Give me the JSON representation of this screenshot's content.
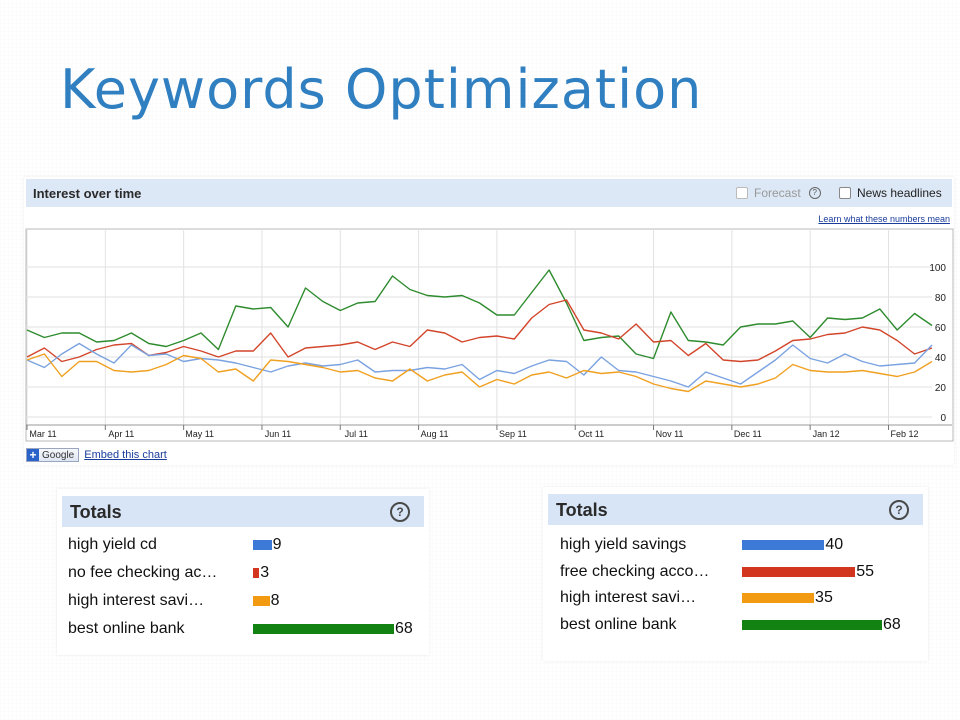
{
  "slide": {
    "title": "Keywords Optimization"
  },
  "trend": {
    "header": "Interest over time",
    "forecast_label": "Forecast",
    "help_glyph": "?",
    "news_label": "News headlines",
    "learn_link": "Learn what these numbers mean",
    "google_label": "Google",
    "plus_glyph": "+",
    "embed_label": "Embed this chart"
  },
  "chart_data": [
    {
      "type": "line",
      "title": "Interest over time",
      "xlabel": "",
      "ylabel": "",
      "ylim": [
        0,
        100
      ],
      "yticks": [
        0,
        20,
        40,
        60,
        80,
        100
      ],
      "grid": true,
      "x_tick_labels": [
        "Mar 11",
        "Apr 11",
        "May 11",
        "Jun 11",
        "Jul 11",
        "Aug 11",
        "Sep 11",
        "Oct 11",
        "Nov 11",
        "Dec 11",
        "Jan 12",
        "Feb 12"
      ],
      "x_tick_index": [
        0,
        4.5,
        9,
        13.5,
        18,
        22.5,
        27,
        31.5,
        36,
        40.5,
        45,
        49.5
      ],
      "n_points": 53,
      "series": [
        {
          "color": "#2e8b2e",
          "values": [
            58,
            53,
            56,
            56,
            50,
            51,
            56,
            49,
            47,
            51,
            56,
            45,
            74,
            72,
            73,
            60,
            86,
            77,
            71,
            76,
            77,
            94,
            85,
            81,
            80,
            81,
            76,
            68,
            68,
            83,
            98,
            76,
            51,
            53,
            54,
            42,
            39,
            70,
            51,
            50,
            48,
            60,
            62,
            62,
            64,
            53,
            66,
            65,
            66,
            72,
            58,
            69,
            61
          ]
        },
        {
          "color": "#d2452a",
          "values": [
            40,
            46,
            37,
            40,
            45,
            48,
            49,
            41,
            43,
            47,
            44,
            40,
            44,
            44,
            56,
            40,
            46,
            47,
            48,
            50,
            45,
            50,
            47,
            58,
            56,
            50,
            53,
            54,
            52,
            66,
            75,
            78,
            58,
            56,
            52,
            62,
            50,
            51,
            41,
            49,
            38,
            37,
            38,
            44,
            51,
            52,
            55,
            56,
            60,
            58,
            51,
            42,
            46
          ]
        },
        {
          "color": "#7aa2e0",
          "values": [
            38,
            33,
            42,
            49,
            42,
            36,
            48,
            41,
            42,
            37,
            39,
            38,
            36,
            33,
            30,
            34,
            36,
            34,
            35,
            38,
            30,
            31,
            31,
            33,
            32,
            35,
            25,
            31,
            29,
            34,
            38,
            37,
            28,
            40,
            31,
            30,
            27,
            24,
            20,
            30,
            26,
            22,
            30,
            38,
            48,
            39,
            36,
            42,
            37,
            34,
            35,
            36,
            48
          ]
        },
        {
          "color": "#f0a020",
          "values": [
            38,
            42,
            27,
            37,
            37,
            31,
            30,
            31,
            35,
            41,
            39,
            30,
            32,
            24,
            38,
            37,
            35,
            33,
            30,
            31,
            26,
            24,
            32,
            24,
            28,
            30,
            20,
            25,
            22,
            28,
            30,
            26,
            31,
            29,
            30,
            27,
            22,
            19,
            17,
            24,
            22,
            20,
            22,
            26,
            35,
            31,
            30,
            30,
            31,
            29,
            27,
            30,
            37
          ]
        }
      ]
    },
    {
      "type": "bar",
      "title": "Totals",
      "categories": [
        "high yield cd",
        "no fee checking ac…",
        "high interest savi…",
        "best online bank"
      ],
      "values": [
        9,
        3,
        8,
        68
      ],
      "colors": [
        "#3d7ad8",
        "#d2361f",
        "#f29a12",
        "#128212"
      ]
    },
    {
      "type": "bar",
      "title": "Totals",
      "categories": [
        "high yield savings",
        "free checking acco…",
        "high interest savi…",
        "best online bank"
      ],
      "values": [
        40,
        55,
        35,
        68
      ],
      "colors": [
        "#3d7ad8",
        "#d2361f",
        "#f29a12",
        "#128212"
      ]
    }
  ]
}
